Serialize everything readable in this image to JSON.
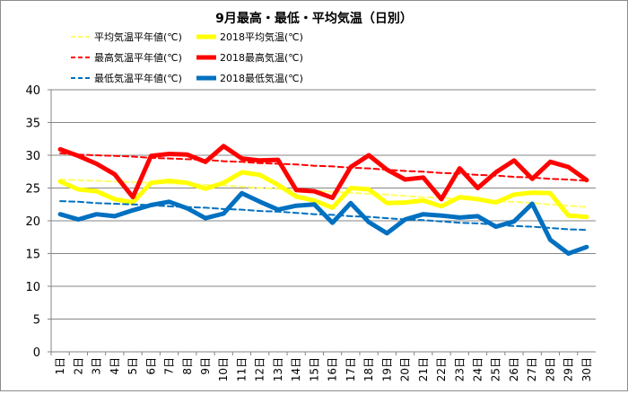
{
  "chart_data": {
    "type": "line",
    "title": "9月最高・最低・平均気温（日別）",
    "xlabel": "",
    "ylabel": "",
    "ylim": [
      0,
      40
    ],
    "yticks": [
      0,
      5,
      10,
      15,
      20,
      25,
      30,
      35,
      40
    ],
    "grid": true,
    "legend_position": "top",
    "categories": [
      "1日",
      "2日",
      "3日",
      "4日",
      "5日",
      "6日",
      "7日",
      "8日",
      "9日",
      "10日",
      "11日",
      "12日",
      "13日",
      "14日",
      "15日",
      "16日",
      "17日",
      "18日",
      "19日",
      "20日",
      "21日",
      "22日",
      "23日",
      "24日",
      "25日",
      "26日",
      "27日",
      "28日",
      "29日",
      "30日"
    ],
    "series": [
      {
        "name": "平均気温平年値(℃)",
        "color": "#ffff66",
        "style": "dashed",
        "values": [
          26.3,
          26.2,
          26.1,
          26.0,
          25.9,
          25.8,
          25.7,
          25.6,
          25.5,
          25.4,
          25.2,
          25.0,
          24.9,
          24.7,
          24.6,
          24.4,
          24.3,
          24.1,
          24.0,
          23.8,
          23.6,
          23.5,
          23.3,
          23.2,
          23.0,
          22.9,
          22.7,
          22.5,
          22.3,
          22.1
        ]
      },
      {
        "name": "2018平均気温(℃)",
        "color": "#ffff00",
        "style": "solid",
        "values": [
          26.0,
          24.8,
          24.5,
          23.3,
          22.8,
          25.8,
          26.1,
          25.8,
          24.9,
          25.8,
          27.4,
          27.0,
          25.5,
          23.7,
          23.1,
          22.0,
          25.0,
          24.8,
          22.7,
          22.8,
          23.1,
          22.2,
          23.6,
          23.3,
          22.8,
          24.0,
          24.3,
          24.2,
          20.8,
          20.6
        ]
      },
      {
        "name": "最高気温平年値(℃)",
        "color": "#ff0000",
        "style": "dashed",
        "values": [
          30.3,
          30.1,
          30.0,
          29.9,
          29.8,
          29.6,
          29.5,
          29.4,
          29.3,
          29.1,
          29.0,
          28.8,
          28.7,
          28.6,
          28.4,
          28.3,
          28.1,
          28.0,
          27.8,
          27.6,
          27.5,
          27.3,
          27.2,
          27.0,
          26.9,
          26.7,
          26.6,
          26.4,
          26.3,
          26.1
        ]
      },
      {
        "name": "2018最高気温(℃)",
        "color": "#ff0000",
        "style": "solid",
        "values": [
          30.9,
          29.9,
          28.7,
          27.1,
          23.6,
          29.9,
          30.2,
          30.1,
          29.0,
          31.4,
          29.5,
          29.2,
          29.3,
          24.7,
          24.5,
          23.5,
          28.2,
          30.0,
          27.8,
          26.3,
          26.6,
          23.3,
          28.0,
          25.0,
          27.4,
          29.2,
          26.4,
          29.0,
          28.2,
          26.2
        ]
      },
      {
        "name": "最低気温平年値(℃)",
        "color": "#0070c0",
        "style": "dashed",
        "values": [
          23.0,
          22.9,
          22.7,
          22.6,
          22.5,
          22.4,
          22.2,
          22.1,
          22.0,
          21.8,
          21.7,
          21.5,
          21.4,
          21.2,
          21.0,
          20.9,
          20.7,
          20.6,
          20.4,
          20.2,
          20.1,
          19.9,
          19.7,
          19.6,
          19.4,
          19.2,
          19.1,
          18.9,
          18.7,
          18.6
        ]
      },
      {
        "name": "2018最低気温(℃)",
        "color": "#0070c0",
        "style": "solid",
        "values": [
          21.0,
          20.2,
          21.0,
          20.7,
          21.6,
          22.4,
          22.9,
          21.9,
          20.4,
          21.1,
          24.2,
          22.9,
          21.7,
          22.3,
          22.5,
          19.7,
          22.7,
          19.8,
          18.1,
          20.2,
          21.0,
          20.8,
          20.5,
          20.7,
          19.1,
          19.9,
          22.6,
          17.1,
          15.0,
          16.0
        ]
      }
    ]
  }
}
